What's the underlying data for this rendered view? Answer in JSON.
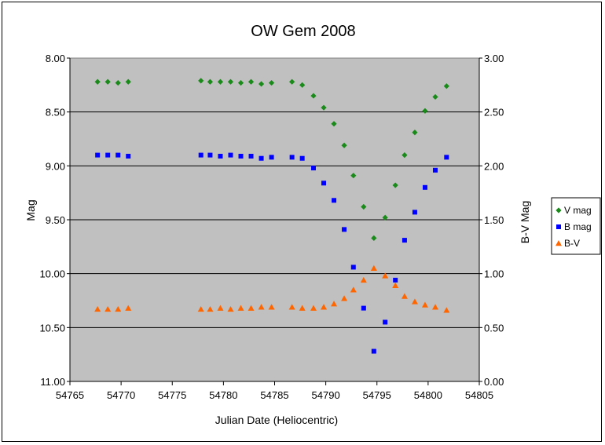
{
  "chart_data": {
    "type": "scatter",
    "title": "OW Gem 2008",
    "xlabel": "Julian Date (Heliocentric)",
    "ylabel": "Mag",
    "y2label": "B-V Mag",
    "xlim": [
      54765,
      54805
    ],
    "ylim": [
      8.0,
      11.0
    ],
    "y_inverted": true,
    "y2lim": [
      0.0,
      3.0
    ],
    "grid": "horizontal",
    "plot_background": "#c0c0c0",
    "legend": "right",
    "x_ticks": [
      "54765",
      "54770",
      "54775",
      "54780",
      "54785",
      "54790",
      "54795",
      "54800",
      "54805"
    ],
    "y_ticks": [
      "8.00",
      "8.50",
      "9.00",
      "9.50",
      "10.00",
      "10.50",
      "11.00"
    ],
    "y2_ticks": [
      "3.00",
      "2.50",
      "2.00",
      "1.50",
      "1.00",
      "0.50",
      "0.00"
    ],
    "series": [
      {
        "name": "V mag",
        "axis": "left",
        "marker": "diamond",
        "color": "#1a8a1a",
        "x": [
          54767.7,
          54768.7,
          54769.7,
          54770.7,
          54777.8,
          54778.7,
          54779.7,
          54780.7,
          54781.7,
          54782.7,
          54783.7,
          54784.7,
          54786.7,
          54787.7,
          54788.8,
          54789.8,
          54790.8,
          54791.8,
          54792.7,
          54793.7,
          54794.7,
          54795.8,
          54796.8,
          54797.7,
          54798.7,
          54799.7,
          54800.7,
          54801.8
        ],
        "y": [
          8.22,
          8.22,
          8.23,
          8.22,
          8.21,
          8.22,
          8.22,
          8.22,
          8.23,
          8.22,
          8.24,
          8.23,
          8.22,
          8.25,
          8.35,
          8.46,
          8.61,
          8.81,
          9.09,
          9.38,
          9.67,
          9.48,
          9.18,
          8.9,
          8.69,
          8.49,
          8.36,
          8.26
        ]
      },
      {
        "name": "B mag",
        "axis": "left",
        "marker": "square",
        "color": "#0000ff",
        "x": [
          54767.7,
          54768.7,
          54769.7,
          54770.7,
          54777.8,
          54778.7,
          54779.7,
          54780.7,
          54781.7,
          54782.7,
          54783.7,
          54784.7,
          54786.7,
          54787.7,
          54788.8,
          54789.8,
          54790.8,
          54791.8,
          54792.7,
          54793.7,
          54794.7,
          54795.8,
          54796.8,
          54797.7,
          54798.7,
          54799.7,
          54800.7,
          54801.8
        ],
        "y": [
          8.9,
          8.9,
          8.9,
          8.91,
          8.9,
          8.9,
          8.91,
          8.9,
          8.91,
          8.91,
          8.93,
          8.92,
          8.92,
          8.93,
          9.02,
          9.16,
          9.32,
          9.59,
          9.94,
          10.32,
          10.72,
          10.45,
          10.06,
          9.69,
          9.43,
          9.2,
          9.04,
          8.92
        ]
      },
      {
        "name": "B-V",
        "axis": "right",
        "marker": "triangle",
        "color": "#ff6600",
        "x": [
          54767.7,
          54768.7,
          54769.7,
          54770.7,
          54777.8,
          54778.7,
          54779.7,
          54780.7,
          54781.7,
          54782.7,
          54783.7,
          54784.7,
          54786.7,
          54787.7,
          54788.8,
          54789.8,
          54790.8,
          54791.8,
          54792.7,
          54793.7,
          54794.7,
          54795.8,
          54796.8,
          54797.7,
          54798.7,
          54799.7,
          54800.7,
          54801.8
        ],
        "y": [
          0.67,
          0.67,
          0.67,
          0.68,
          0.67,
          0.67,
          0.68,
          0.67,
          0.68,
          0.68,
          0.69,
          0.69,
          0.69,
          0.68,
          0.68,
          0.69,
          0.72,
          0.77,
          0.85,
          0.94,
          1.05,
          0.98,
          0.89,
          0.79,
          0.74,
          0.71,
          0.69,
          0.66
        ]
      }
    ]
  }
}
